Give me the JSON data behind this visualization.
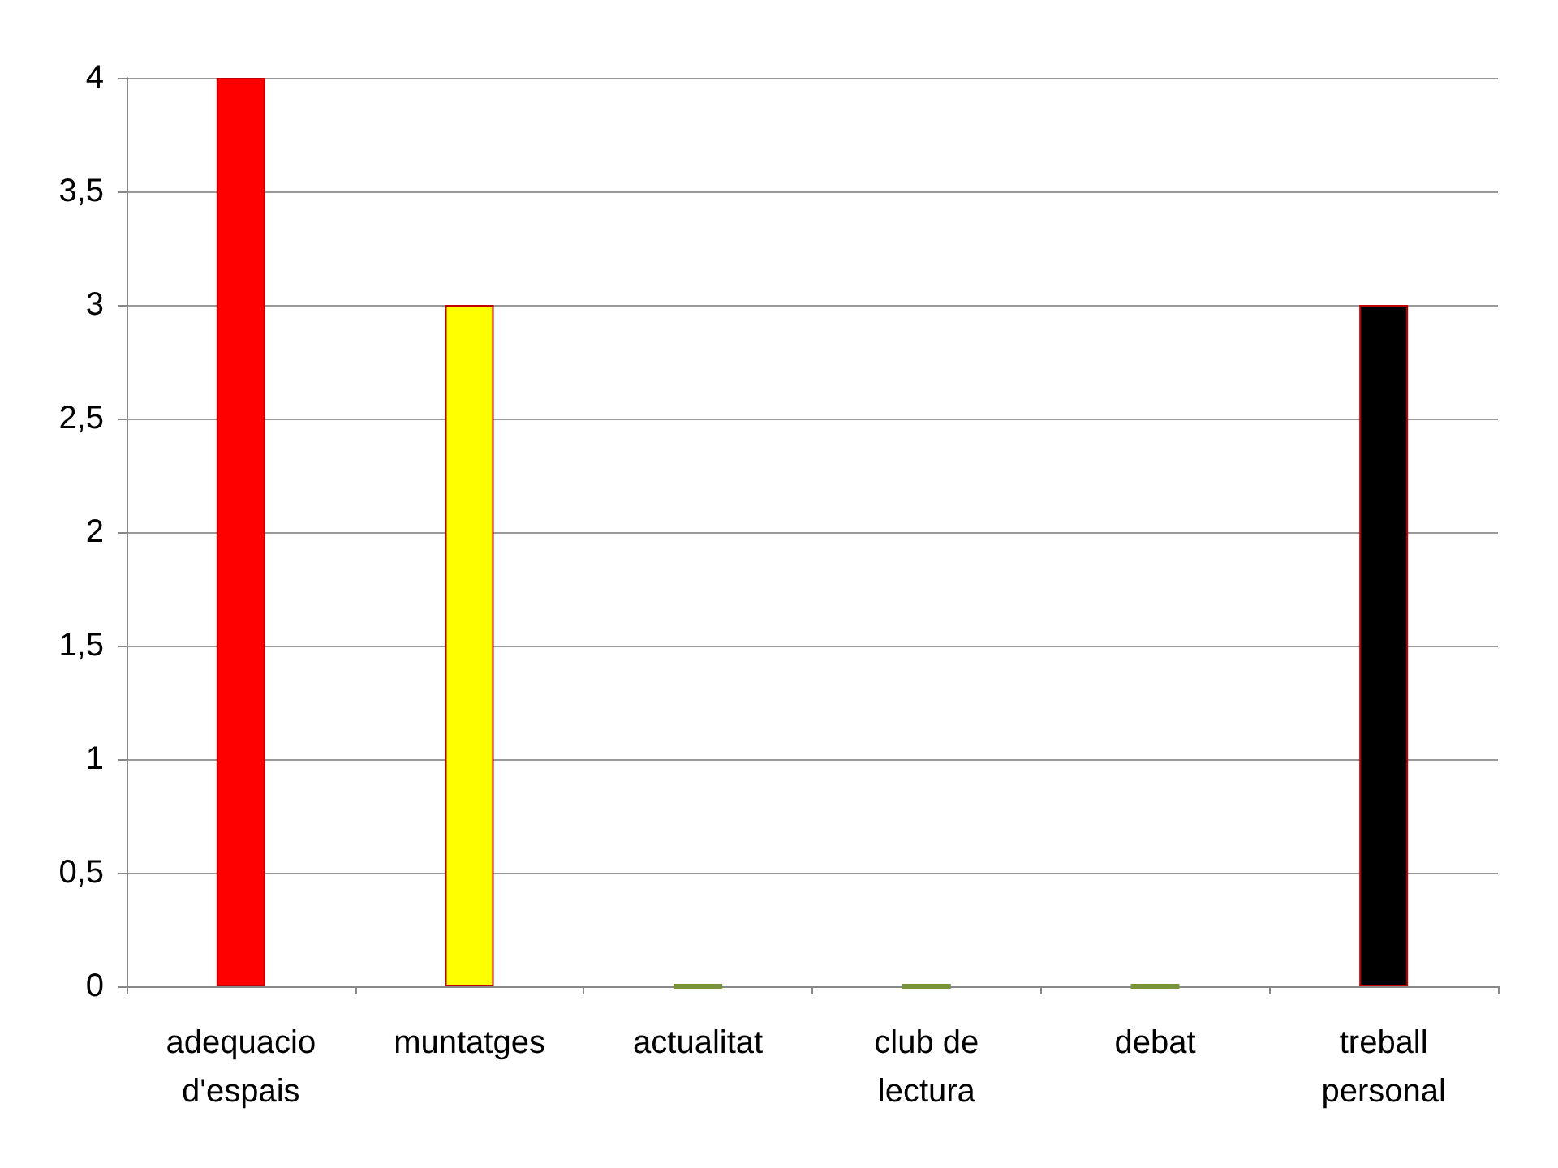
{
  "chart_data": {
    "type": "bar",
    "categories": [
      "adequacio\nd'espais",
      "muntatges",
      "actualitat",
      "club de\nlectura",
      "debat",
      "treball\npersonal"
    ],
    "values": [
      4,
      3,
      0,
      0,
      0,
      3
    ],
    "colors": [
      "#ff0000",
      "#ffff00",
      "#77933c",
      "#77933c",
      "#77933c",
      "#000000"
    ],
    "ylim": [
      0,
      4
    ],
    "yticks": [
      0,
      {
        "value": 0.5,
        "label": "0,5"
      },
      1,
      {
        "value": 1.5,
        "label": "1,5"
      },
      2,
      {
        "value": 2.5,
        "label": "2,5"
      },
      3,
      {
        "value": 3.5,
        "label": "3,5"
      },
      4
    ],
    "grid": "y"
  }
}
